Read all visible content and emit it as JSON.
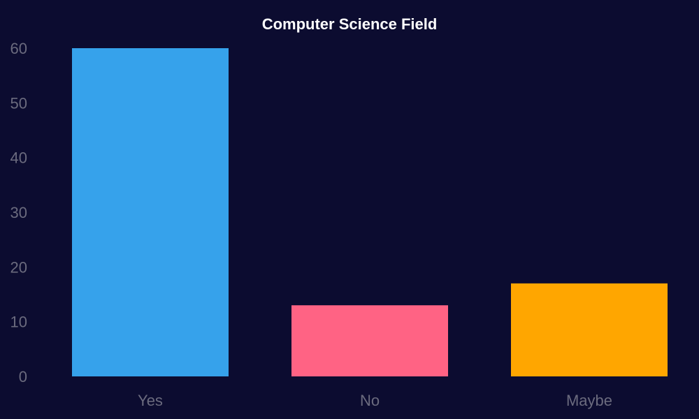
{
  "chart_data": {
    "type": "bar",
    "title": "Computer Science Field",
    "xlabel": "",
    "ylabel": "",
    "categories": [
      "Yes",
      "No",
      "Maybe"
    ],
    "values": [
      60,
      13,
      17
    ],
    "colors": [
      "#36a2eb",
      "#ff6384",
      "#ffa600"
    ],
    "ylim": [
      0,
      60
    ],
    "yticks": [
      "0",
      "10",
      "20",
      "30",
      "40",
      "50",
      "60"
    ],
    "grid": false,
    "legend": "none",
    "background": "#0c0c30"
  }
}
